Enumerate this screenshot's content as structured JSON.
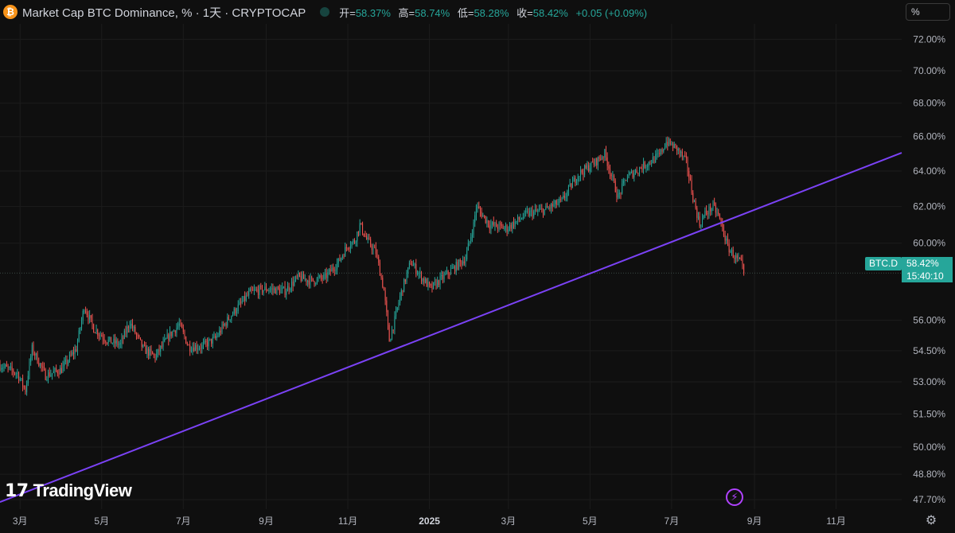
{
  "header": {
    "title": "Market Cap BTC Dominance, % · 1天 · CRYPTOCAP",
    "ohlc": [
      {
        "label": "开=",
        "value": "58.37%"
      },
      {
        "label": "高=",
        "value": "58.74%"
      },
      {
        "label": "低=",
        "value": "58.28%"
      },
      {
        "label": "收=",
        "value": "58.42%"
      },
      {
        "label": "",
        "value": "+0.05 (+0.09%)"
      }
    ]
  },
  "price_scale": {
    "unit_label": "%",
    "symbol_tag": "BTC.D",
    "last_price": "58.42%",
    "countdown": "15:40:10"
  },
  "branding": {
    "logo_text": "TradingView"
  },
  "icons": {
    "logo": "btc-logo-icon",
    "status": "market-status-icon",
    "bolt": "lightning-icon",
    "settings": "gear-icon"
  },
  "colors": {
    "background": "#0f0f0f",
    "up": "#26a69a",
    "down": "#ef5350",
    "trendline": "#7b42f6",
    "grid": "#1c1c1c",
    "axis_text": "#b2b5be"
  },
  "chart_data": {
    "type": "candlestick",
    "title": "Market Cap BTC Dominance, % · 1天 · CRYPTOCAP",
    "y_scale": "log",
    "ylim": [
      47.3,
      73.0
    ],
    "y_ticks": [
      "72.00%",
      "70.00%",
      "68.00%",
      "66.00%",
      "64.00%",
      "62.00%",
      "60.00%",
      "56.00%",
      "54.50%",
      "53.00%",
      "51.50%",
      "50.00%",
      "48.80%",
      "47.70%"
    ],
    "x_range": [
      "2024-02-15",
      "2025-12-20"
    ],
    "x_ticks": [
      {
        "date": "2024-03-01",
        "label": "3月"
      },
      {
        "date": "2024-05-01",
        "label": "5月"
      },
      {
        "date": "2024-07-01",
        "label": "7月"
      },
      {
        "date": "2024-09-01",
        "label": "9月"
      },
      {
        "date": "2024-11-01",
        "label": "11月"
      },
      {
        "date": "2025-01-01",
        "label": "2025"
      },
      {
        "date": "2025-03-01",
        "label": "3月"
      },
      {
        "date": "2025-05-01",
        "label": "5月"
      },
      {
        "date": "2025-07-01",
        "label": "7月"
      },
      {
        "date": "2025-09-01",
        "label": "9月"
      },
      {
        "date": "2025-11-01",
        "label": "11月"
      }
    ],
    "close_path": [
      [
        "2024-02-15",
        53.8
      ],
      [
        "2024-02-28",
        53.4
      ],
      [
        "2024-03-05",
        52.6
      ],
      [
        "2024-03-10",
        54.6
      ],
      [
        "2024-03-20",
        53.3
      ],
      [
        "2024-04-01",
        53.6
      ],
      [
        "2024-04-12",
        54.6
      ],
      [
        "2024-04-18",
        56.7
      ],
      [
        "2024-04-25",
        55.6
      ],
      [
        "2024-05-05",
        55.0
      ],
      [
        "2024-05-15",
        54.8
      ],
      [
        "2024-05-22",
        55.9
      ],
      [
        "2024-06-01",
        54.6
      ],
      [
        "2024-06-10",
        54.2
      ],
      [
        "2024-06-20",
        55.2
      ],
      [
        "2024-06-28",
        55.8
      ],
      [
        "2024-07-05",
        54.7
      ],
      [
        "2024-07-15",
        54.7
      ],
      [
        "2024-07-25",
        55.1
      ],
      [
        "2024-08-05",
        56.2
      ],
      [
        "2024-08-20",
        57.4
      ],
      [
        "2024-09-01",
        57.6
      ],
      [
        "2024-09-15",
        57.5
      ],
      [
        "2024-09-25",
        58.2
      ],
      [
        "2024-10-05",
        58.0
      ],
      [
        "2024-10-15",
        58.2
      ],
      [
        "2024-10-25",
        59.0
      ],
      [
        "2024-11-01",
        59.9
      ],
      [
        "2024-11-06",
        60.1
      ],
      [
        "2024-11-10",
        61.0
      ],
      [
        "2024-11-15",
        60.2
      ],
      [
        "2024-11-22",
        59.5
      ],
      [
        "2024-11-28",
        57.5
      ],
      [
        "2024-12-02",
        55.0
      ],
      [
        "2024-12-06",
        56.0
      ],
      [
        "2024-12-10",
        57.2
      ],
      [
        "2024-12-18",
        59.0
      ],
      [
        "2024-12-26",
        58.2
      ],
      [
        "2025-01-02",
        57.6
      ],
      [
        "2025-01-08",
        58.0
      ],
      [
        "2025-01-18",
        58.6
      ],
      [
        "2025-01-28",
        59.2
      ],
      [
        "2025-02-03",
        61.0
      ],
      [
        "2025-02-05",
        62.0
      ],
      [
        "2025-02-15",
        61.0
      ],
      [
        "2025-02-28",
        60.8
      ],
      [
        "2025-03-15",
        61.6
      ],
      [
        "2025-03-28",
        61.8
      ],
      [
        "2025-04-10",
        62.3
      ],
      [
        "2025-04-22",
        63.8
      ],
      [
        "2025-05-05",
        64.5
      ],
      [
        "2025-05-12",
        65.0
      ],
      [
        "2025-05-16",
        64.0
      ],
      [
        "2025-05-22",
        62.5
      ],
      [
        "2025-05-28",
        63.6
      ],
      [
        "2025-06-10",
        64.3
      ],
      [
        "2025-06-22",
        64.9
      ],
      [
        "2025-06-27",
        65.7
      ],
      [
        "2025-07-05",
        65.3
      ],
      [
        "2025-07-12",
        64.5
      ],
      [
        "2025-07-17",
        62.5
      ],
      [
        "2025-07-22",
        61.0
      ],
      [
        "2025-07-26",
        61.6
      ],
      [
        "2025-08-01",
        62.0
      ],
      [
        "2025-08-05",
        61.5
      ],
      [
        "2025-08-08",
        60.8
      ],
      [
        "2025-08-12",
        59.8
      ],
      [
        "2025-08-18",
        59.2
      ],
      [
        "2025-08-22",
        58.9
      ],
      [
        "2025-08-24",
        58.42
      ]
    ],
    "last_close": 58.42,
    "trendline": {
      "start": [
        "2024-02-15",
        47.6
      ],
      "end": [
        "2025-12-20",
        65.05
      ]
    }
  }
}
